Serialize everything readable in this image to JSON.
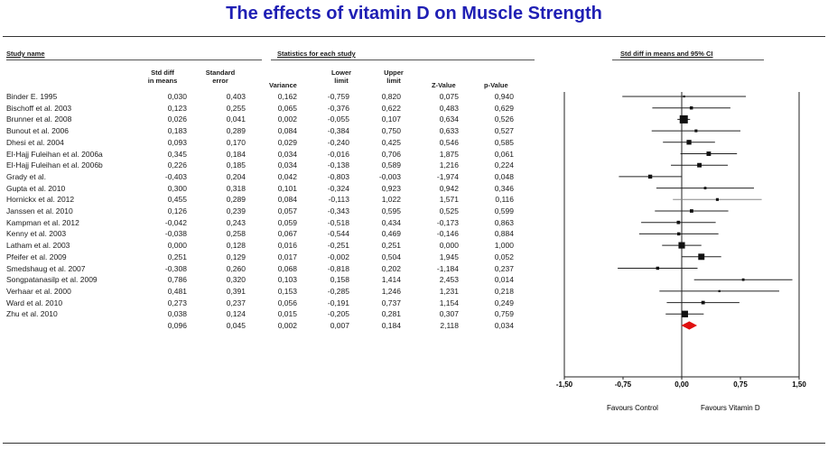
{
  "title": "The effects of vitamin D on Muscle Strength",
  "headers": {
    "study_name": "Study name",
    "stats_group": "Statistics for each study",
    "plot_group": "Std diff in means and 95%  CI",
    "std_diff_1": "Std diff",
    "std_diff_2": "in means",
    "std_err_1": "Standard",
    "std_err_2": "error",
    "variance": "Variance",
    "lower_1": "Lower",
    "lower_2": "limit",
    "upper_1": "Upper",
    "upper_2": "limit",
    "z_value": "Z-Value",
    "p_value": "p-Value"
  },
  "chart_data": {
    "type": "forest",
    "title": "The effects of vitamin D on Muscle Strength",
    "xlim": [
      -1.5,
      1.5
    ],
    "xticks": [
      "-1,50",
      "-0,75",
      "0,00",
      "0,75",
      "1,50"
    ],
    "xtick_values": [
      -1.5,
      -0.75,
      0,
      0.75,
      1.5
    ],
    "favours_left": "Favours Control",
    "favours_right": "Favours Vitamin D",
    "studies": [
      {
        "name": "Binder E. 1995",
        "smd": "0,030",
        "se": "0,403",
        "var": "0,162",
        "lower": "-0,759",
        "upper": "0,820",
        "z": "0,075",
        "p": "0,940",
        "v": 0.03,
        "lo": -0.759,
        "hi": 0.82,
        "w": 0.162
      },
      {
        "name": "Bischoff et al. 2003",
        "smd": "0,123",
        "se": "0,255",
        "var": "0,065",
        "lower": "-0,376",
        "upper": "0,622",
        "z": "0,483",
        "p": "0,629",
        "v": 0.123,
        "lo": -0.376,
        "hi": 0.622,
        "w": 0.065
      },
      {
        "name": "Brunner et al. 2008",
        "smd": "0,026",
        "se": "0,041",
        "var": "0,002",
        "lower": "-0,055",
        "upper": "0,107",
        "z": "0,634",
        "p": "0,526",
        "v": 0.026,
        "lo": -0.055,
        "hi": 0.107,
        "w": 0.002
      },
      {
        "name": "Bunout et al. 2006",
        "smd": "0,183",
        "se": "0,289",
        "var": "0,084",
        "lower": "-0,384",
        "upper": "0,750",
        "z": "0,633",
        "p": "0,527",
        "v": 0.183,
        "lo": -0.384,
        "hi": 0.75,
        "w": 0.084
      },
      {
        "name": "Dhesi et al. 2004",
        "smd": "0,093",
        "se": "0,170",
        "var": "0,029",
        "lower": "-0,240",
        "upper": "0,425",
        "z": "0,546",
        "p": "0,585",
        "v": 0.093,
        "lo": -0.24,
        "hi": 0.425,
        "w": 0.029
      },
      {
        "name": "El-Hajj Fuleihan et al. 2006a",
        "smd": "0,345",
        "se": "0,184",
        "var": "0,034",
        "lower": "-0,016",
        "upper": "0,706",
        "z": "1,875",
        "p": "0,061",
        "v": 0.345,
        "lo": -0.016,
        "hi": 0.706,
        "w": 0.034
      },
      {
        "name": "El-Hajj Fuleihan et al. 2006b",
        "smd": "0,226",
        "se": "0,185",
        "var": "0,034",
        "lower": "-0,138",
        "upper": "0,589",
        "z": "1,216",
        "p": "0,224",
        "v": 0.226,
        "lo": -0.138,
        "hi": 0.589,
        "w": 0.034
      },
      {
        "name": "Grady et al.",
        "smd": "-0,403",
        "se": "0,204",
        "var": "0,042",
        "lower": "-0,803",
        "upper": "-0,003",
        "z": "-1,974",
        "p": "0,048",
        "v": -0.403,
        "lo": -0.803,
        "hi": -0.003,
        "w": 0.042
      },
      {
        "name": "Gupta et al. 2010",
        "smd": "0,300",
        "se": "0,318",
        "var": "0,101",
        "lower": "-0,324",
        "upper": "0,923",
        "z": "0,942",
        "p": "0,346",
        "v": 0.3,
        "lo": -0.324,
        "hi": 0.923,
        "w": 0.101
      },
      {
        "name": "Hornickx et al. 2012",
        "smd": "0,455",
        "se": "0,289",
        "var": "0,084",
        "lower": "-0,113",
        "upper": "1,022",
        "z": "1,571",
        "p": "0,116",
        "v": 0.455,
        "lo": -0.113,
        "hi": 1.022,
        "w": 0.084
      },
      {
        "name": "Janssen et al. 2010",
        "smd": "0,126",
        "se": "0,239",
        "var": "0,057",
        "lower": "-0,343",
        "upper": "0,595",
        "z": "0,525",
        "p": "0,599",
        "v": 0.126,
        "lo": -0.343,
        "hi": 0.595,
        "w": 0.057
      },
      {
        "name": "Kampman et al. 2012",
        "smd": "-0,042",
        "se": "0,243",
        "var": "0,059",
        "lower": "-0,518",
        "upper": "0,434",
        "z": "-0,173",
        "p": "0,863",
        "v": -0.042,
        "lo": -0.518,
        "hi": 0.434,
        "w": 0.059
      },
      {
        "name": "Kenny et al. 2003",
        "smd": "-0,038",
        "se": "0,258",
        "var": "0,067",
        "lower": "-0,544",
        "upper": "0,469",
        "z": "-0,146",
        "p": "0,884",
        "v": -0.038,
        "lo": -0.544,
        "hi": 0.469,
        "w": 0.067
      },
      {
        "name": "Latham et al. 2003",
        "smd": "0,000",
        "se": "0,128",
        "var": "0,016",
        "lower": "-0,251",
        "upper": "0,251",
        "z": "0,000",
        "p": "1,000",
        "v": 0.0,
        "lo": -0.251,
        "hi": 0.251,
        "w": 0.016
      },
      {
        "name": "Pfeifer et al. 2009",
        "smd": "0,251",
        "se": "0,129",
        "var": "0,017",
        "lower": "-0,002",
        "upper": "0,504",
        "z": "1,945",
        "p": "0,052",
        "v": 0.251,
        "lo": -0.002,
        "hi": 0.504,
        "w": 0.017
      },
      {
        "name": "Smedshaug et al. 2007",
        "smd": "-0,308",
        "se": "0,260",
        "var": "0,068",
        "lower": "-0,818",
        "upper": "0,202",
        "z": "-1,184",
        "p": "0,237",
        "v": -0.308,
        "lo": -0.818,
        "hi": 0.202,
        "w": 0.068
      },
      {
        "name": "Songpatanasilp et al. 2009",
        "smd": "0,786",
        "se": "0,320",
        "var": "0,103",
        "lower": "0,158",
        "upper": "1,414",
        "z": "2,453",
        "p": "0,014",
        "v": 0.786,
        "lo": 0.158,
        "hi": 1.414,
        "w": 0.103
      },
      {
        "name": "Verhaar et al. 2000",
        "smd": "0,481",
        "se": "0,391",
        "var": "0,153",
        "lower": "-0,285",
        "upper": "1,246",
        "z": "1,231",
        "p": "0,218",
        "v": 0.481,
        "lo": -0.285,
        "hi": 1.246,
        "w": 0.153
      },
      {
        "name": "Ward et al. 2010",
        "smd": "0,273",
        "se": "0,237",
        "var": "0,056",
        "lower": "-0,191",
        "upper": "0,737",
        "z": "1,154",
        "p": "0,249",
        "v": 0.273,
        "lo": -0.191,
        "hi": 0.737,
        "w": 0.056
      },
      {
        "name": "Zhu et al. 2010",
        "smd": "0,038",
        "se": "0,124",
        "var": "0,015",
        "lower": "-0,205",
        "upper": "0,281",
        "z": "0,307",
        "p": "0,759",
        "v": 0.038,
        "lo": -0.205,
        "hi": 0.281,
        "w": 0.015
      }
    ],
    "summary": {
      "name": "",
      "smd": "0,096",
      "se": "0,045",
      "var": "0,002",
      "lower": "0,007",
      "upper": "0,184",
      "z": "2,118",
      "p": "0,034",
      "v": 0.096,
      "lo": 0.007,
      "hi": 0.184
    },
    "colors": {
      "title": "#1f1fb4",
      "diamond": "#e01010",
      "lines": "#1a1a1a"
    }
  }
}
